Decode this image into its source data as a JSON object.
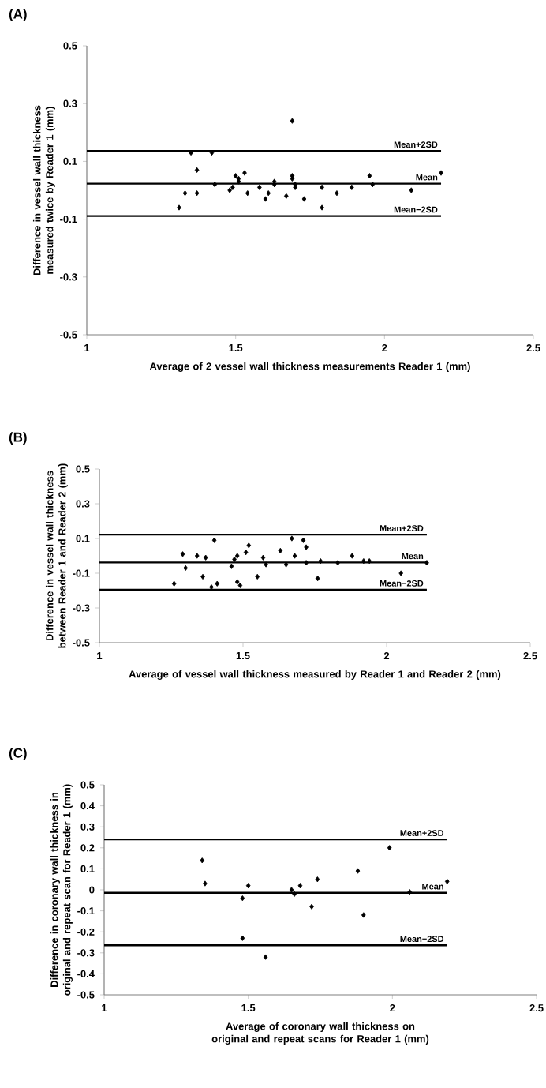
{
  "chart_data": [
    {
      "type": "scatter",
      "title": "(A)",
      "xlabel": "Average of 2 vessel wall thickness measurements Reader 1 (mm)",
      "ylabel": "Difference in vessel wall thickness measured twice by Reader 1 (mm)",
      "marker": "diamond",
      "xlim": [
        1,
        2.5
      ],
      "ylim": [
        -0.5,
        0.5
      ],
      "xticks": [
        1,
        1.5,
        2,
        2.5
      ],
      "yticks": [
        -0.5,
        -0.3,
        -0.1,
        0.1,
        0.3,
        0.5
      ],
      "series": [
        {
          "color": "#000000",
          "x": [
            1.31,
            1.33,
            1.35,
            1.37,
            1.37,
            1.42,
            1.43,
            1.48,
            1.49,
            1.5,
            1.51,
            1.51,
            1.53,
            1.54,
            1.58,
            1.6,
            1.61,
            1.63,
            1.63,
            1.67,
            1.69,
            1.69,
            1.69,
            1.7,
            1.7,
            1.73,
            1.79,
            1.79,
            1.84,
            1.89,
            1.95,
            1.96,
            2.09,
            2.19
          ],
          "values": [
            -0.06,
            -0.01,
            0.13,
            -0.01,
            0.07,
            0.13,
            0.02,
            0.0,
            0.01,
            0.05,
            0.03,
            0.04,
            0.06,
            -0.01,
            0.01,
            -0.03,
            -0.01,
            0.02,
            0.03,
            -0.02,
            0.04,
            0.05,
            0.24,
            0.02,
            0.01,
            -0.03,
            0.01,
            -0.06,
            -0.01,
            0.01,
            0.05,
            0.02,
            0.0,
            0.06
          ]
        }
      ],
      "ref_lines": [
        {
          "axis": "y",
          "value": 0.136,
          "label": "Mean+2SD",
          "color": "#000000"
        },
        {
          "axis": "y",
          "value": 0.023,
          "label": "Mean",
          "color": "#000000"
        },
        {
          "axis": "y",
          "value": -0.089,
          "label": "Mean−2SD",
          "color": "#000000"
        }
      ]
    },
    {
      "type": "scatter",
      "title": "(B)",
      "xlabel": "Average of vessel wall thickness measured by Reader 1 and Reader 2 (mm)",
      "ylabel": "Difference in vessel wall thickness between Reader 1 and Reader 2 (mm)",
      "marker": "diamond",
      "xlim": [
        1,
        2.5
      ],
      "ylim": [
        -0.5,
        0.5
      ],
      "xticks": [
        1,
        1.5,
        2,
        2.5
      ],
      "yticks": [
        -0.5,
        -0.3,
        -0.1,
        0.1,
        0.3,
        0.5
      ],
      "series": [
        {
          "color": "#000000",
          "x": [
            1.26,
            1.29,
            1.3,
            1.34,
            1.37,
            1.36,
            1.4,
            1.39,
            1.41,
            1.46,
            1.47,
            1.48,
            1.48,
            1.49,
            1.51,
            1.52,
            1.55,
            1.57,
            1.58,
            1.63,
            1.65,
            1.67,
            1.68,
            1.71,
            1.72,
            1.72,
            1.76,
            1.77,
            1.83,
            1.88,
            1.92,
            1.94,
            2.05,
            2.14
          ],
          "values": [
            -0.16,
            0.01,
            -0.07,
            0.0,
            -0.01,
            -0.12,
            0.09,
            -0.18,
            -0.16,
            -0.06,
            -0.02,
            0.0,
            -0.15,
            -0.17,
            0.02,
            0.06,
            -0.12,
            -0.01,
            -0.05,
            0.03,
            -0.05,
            0.1,
            0.0,
            0.09,
            0.05,
            -0.04,
            -0.13,
            -0.03,
            -0.04,
            0.0,
            -0.03,
            -0.03,
            -0.1,
            -0.04
          ]
        }
      ],
      "ref_lines": [
        {
          "axis": "y",
          "value": 0.122,
          "label": "Mean+2SD",
          "color": "#000000"
        },
        {
          "axis": "y",
          "value": -0.038,
          "label": "Mean",
          "color": "#000000"
        },
        {
          "axis": "y",
          "value": -0.195,
          "label": "Mean−2SD",
          "color": "#000000"
        }
      ]
    },
    {
      "type": "scatter",
      "title": "(C)",
      "xlabel": "Average of coronary wall thickness on original and repeat scans for Reader 1 (mm)",
      "ylabel": "Difference in coronary wall thickness in original and repeat scan for Reader 1 (mm)",
      "marker": "diamond",
      "xlim": [
        1,
        2.5
      ],
      "ylim": [
        -0.5,
        0.5
      ],
      "xticks": [
        1,
        1.5,
        2,
        2.5
      ],
      "yticks": [
        -0.5,
        -0.4,
        -0.3,
        -0.2,
        -0.1,
        0,
        0.1,
        0.2,
        0.3,
        0.4,
        0.5
      ],
      "series": [
        {
          "color": "#000000",
          "x": [
            1.34,
            1.35,
            1.48,
            1.48,
            1.5,
            1.56,
            1.65,
            1.66,
            1.68,
            1.72,
            1.74,
            1.88,
            1.9,
            1.99,
            2.06,
            2.19
          ],
          "values": [
            0.14,
            0.03,
            -0.04,
            -0.23,
            0.02,
            -0.32,
            0.0,
            -0.02,
            0.02,
            -0.08,
            0.05,
            0.09,
            -0.12,
            0.2,
            -0.01,
            0.04
          ]
        }
      ],
      "ref_lines": [
        {
          "axis": "y",
          "value": 0.24,
          "label": "Mean+2SD",
          "color": "#000000"
        },
        {
          "axis": "y",
          "value": -0.014,
          "label": "Mean",
          "color": "#000000"
        },
        {
          "axis": "y",
          "value": -0.264,
          "label": "Mean−2SD",
          "color": "#000000"
        }
      ]
    }
  ]
}
